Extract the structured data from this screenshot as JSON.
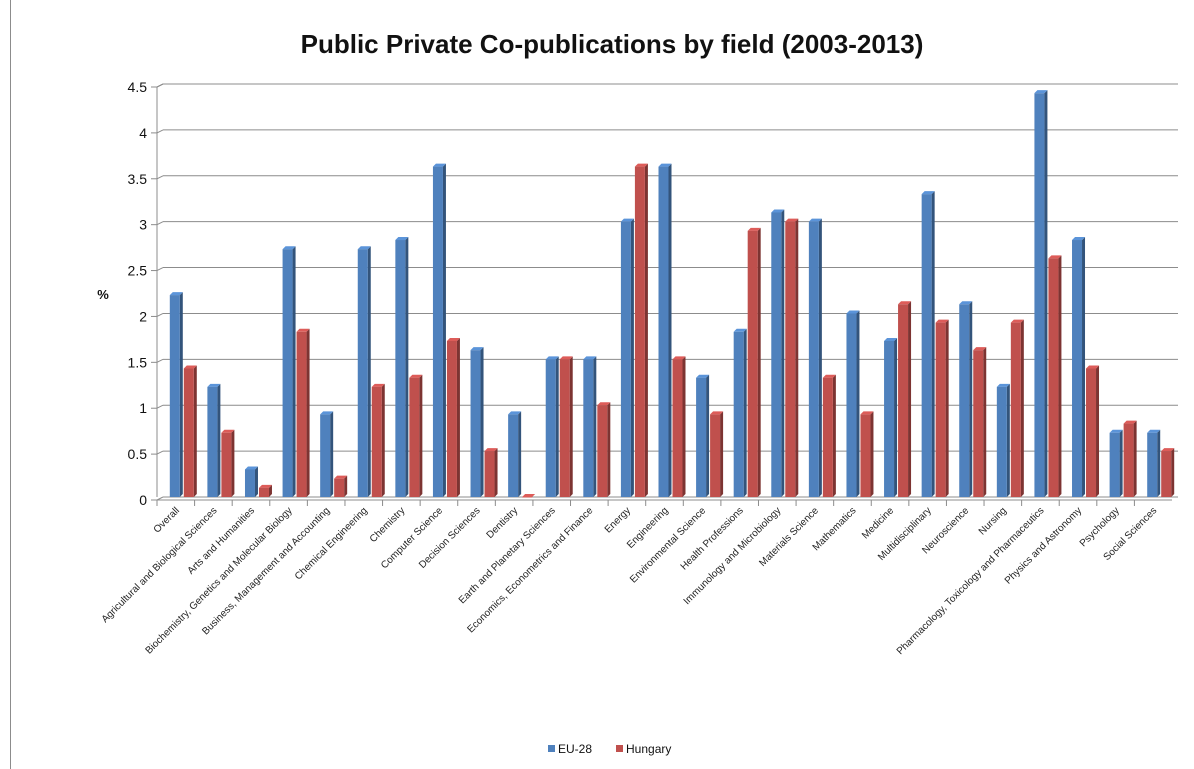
{
  "chart_data": {
    "type": "bar",
    "title": "Public Private Co-publications by field (2003-2013)",
    "xlabel": "",
    "ylabel": "%",
    "ylim": [
      0,
      4.5
    ],
    "yticks": [
      "0",
      "0.5",
      "1",
      "1.5",
      "2",
      "2.5",
      "3",
      "3.5",
      "4",
      "4.5"
    ],
    "grid": true,
    "legend_position": "bottom",
    "categories": [
      "Overall",
      "Agricultural and Biological Sciences",
      "Arts and Humanities",
      "Biochemistry, Genetics and Molecular Biology",
      "Business, Management and Accounting",
      "Chemical Engineering",
      "Chemistry",
      "Computer Science",
      "Decision Sciences",
      "Dentistry",
      "Earth and Planetary Sciences",
      "Economics, Econometrics and Finance",
      "Energy",
      "Engineering",
      "Environmental Science",
      "Health Professions",
      "Immunology and Microbiology",
      "Materials Science",
      "Mathematics",
      "Medicine",
      "Multidisciplinary",
      "Neuroscience",
      "Nursing",
      "Pharmacology, Toxicology and Pharmaceutics",
      "Physics and Astronomy",
      "Psychology",
      "Social Sciences"
    ],
    "series": [
      {
        "name": "EU-28",
        "color": "#4f81bd",
        "values": [
          2.2,
          1.2,
          0.3,
          2.7,
          0.9,
          2.7,
          2.8,
          3.6,
          1.6,
          0.9,
          1.5,
          1.5,
          3.0,
          3.6,
          1.3,
          1.8,
          3.1,
          3.0,
          2.0,
          1.7,
          3.3,
          2.1,
          1.2,
          4.4,
          2.8,
          0.7,
          0.7
        ]
      },
      {
        "name": "Hungary",
        "color": "#c0504d",
        "values": [
          1.4,
          0.7,
          0.1,
          1.8,
          0.2,
          1.2,
          1.3,
          1.7,
          0.5,
          0.0,
          1.5,
          1.0,
          3.6,
          1.5,
          0.9,
          2.9,
          3.0,
          1.3,
          0.9,
          2.1,
          1.9,
          1.6,
          1.9,
          2.6,
          1.4,
          0.8,
          0.5
        ]
      }
    ]
  }
}
